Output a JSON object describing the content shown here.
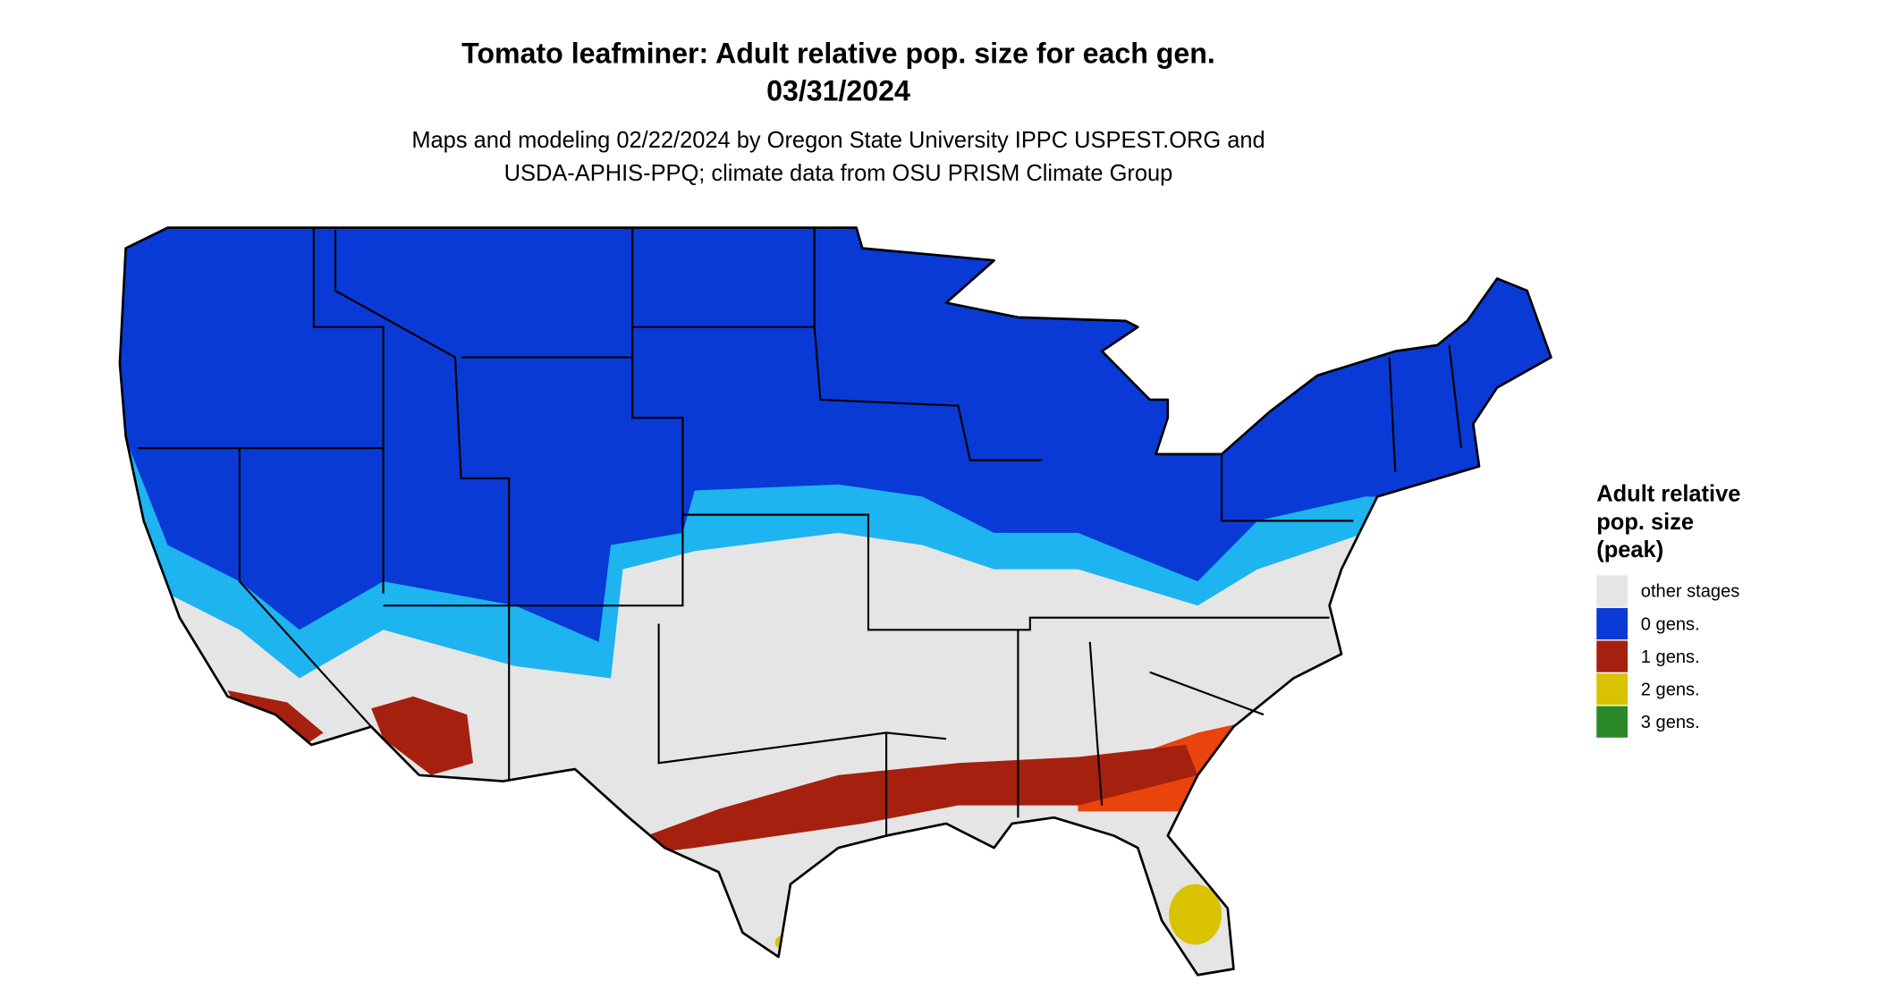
{
  "header": {
    "title": "Tomato leafminer: Adult relative pop. size for each gen.",
    "date": "03/31/2024",
    "subtitle_lines": [
      "Maps and modeling 02/22/2024 by Oregon State University IPPC USPEST.ORG and",
      "USDA-APHIS-PPQ; climate data from OSU PRISM Climate Group"
    ]
  },
  "legend": {
    "title_lines": [
      "Adult relative",
      "pop. size",
      "(peak)"
    ],
    "items": [
      {
        "label": "other stages",
        "color": "#e5e5e5"
      },
      {
        "label": "0 gens.",
        "color": "#0a3ad6"
      },
      {
        "label": "1 gens.",
        "color": "#a6200f"
      },
      {
        "label": "2 gens.",
        "color": "#d9c200"
      },
      {
        "label": "3 gens.",
        "color": "#2a8a2a"
      }
    ]
  }
}
